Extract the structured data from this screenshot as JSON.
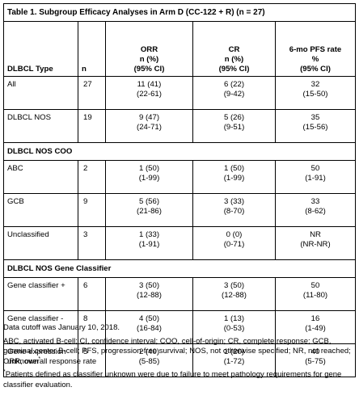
{
  "table": {
    "title": "Table 1. Subgroup Efficacy Analyses in Arm D (CC-122 + R) (n = 27)",
    "headers": {
      "type": "DLBCL Type",
      "n": "n",
      "orr": [
        "ORR",
        "n (%)",
        "(95% CI)"
      ],
      "cr": [
        "CR",
        "n (%)",
        "(95% CI)"
      ],
      "pfs": [
        "6-mo PFS rate",
        "%",
        "(95% CI)"
      ]
    },
    "rows_top": [
      {
        "type": "All",
        "n": "27",
        "orr": "11 (41)",
        "orr_ci": "(22-61)",
        "cr": "6 (22)",
        "cr_ci": "(9-42)",
        "pfs": "32",
        "pfs_ci": "(15-50)"
      },
      {
        "type": "DLBCL NOS",
        "n": "19",
        "orr": "9 (47)",
        "orr_ci": "(24-71)",
        "cr": "5 (26)",
        "cr_ci": "(9-51)",
        "pfs": "35",
        "pfs_ci": "(15-56)"
      }
    ],
    "section_coo": "DLBCL NOS COO",
    "rows_coo": [
      {
        "type": "ABC",
        "n": "2",
        "orr": "1 (50)",
        "orr_ci": "(1-99)",
        "cr": "1 (50)",
        "cr_ci": "(1-99)",
        "pfs": "50",
        "pfs_ci": "(1-91)"
      },
      {
        "type": "GCB",
        "n": "9",
        "orr": "5 (56)",
        "orr_ci": "(21-86)",
        "cr": "3 (33)",
        "cr_ci": "(8-70)",
        "pfs": "33",
        "pfs_ci": "(8-62)"
      },
      {
        "type": "Unclassified",
        "n": "3",
        "orr": "1 (33)",
        "orr_ci": "(1-91)",
        "cr": "0 (0)",
        "cr_ci": "(0-71)",
        "pfs": "NR",
        "pfs_ci": "(NR-NR)"
      }
    ],
    "section_gene": "DLBCL NOS Gene Classifier",
    "rows_gene": [
      {
        "type": "Gene classifier +",
        "n": "6",
        "orr": "3 (50)",
        "orr_ci": "(12-88)",
        "cr": "3 (50)",
        "cr_ci": "(12-88)",
        "pfs": "50",
        "pfs_ci": "(11-80)"
      },
      {
        "type": "Gene classifier -",
        "n": "8",
        "orr": "4 (50)",
        "orr_ci": "(16-84)",
        "cr": "1 (13)",
        "cr_ci": "(0-53)",
        "pfs": "16",
        "pfs_ci": "(1-49)"
      },
      {
        "type_line1": "Gene expression",
        "type_line2": "unknown",
        "type_sup": "*",
        "n": "5",
        "orr": "2 (40)",
        "orr_ci": "(5-85)",
        "cr": "1 (20)",
        "cr_ci": "(1-72)",
        "pfs": "40",
        "pfs_ci": "(5-75)"
      }
    ]
  },
  "notes": {
    "cutoff": "Data cutoff was January 10, 2018.",
    "abbreviations": "ABC, activated B-cell; CI, confidence interval; COO, cell-of-origin; CR, complete response; GCB, germinal center B-cell; PFS, progression-free survival; NOS, not otherwise specified; NR, not reached; ORR, overall response rate",
    "footnote_mark": "*",
    "footnote": "Patients defined as classifier unknown were due to failure to meet pathology requirements for gene classifier evaluation."
  }
}
